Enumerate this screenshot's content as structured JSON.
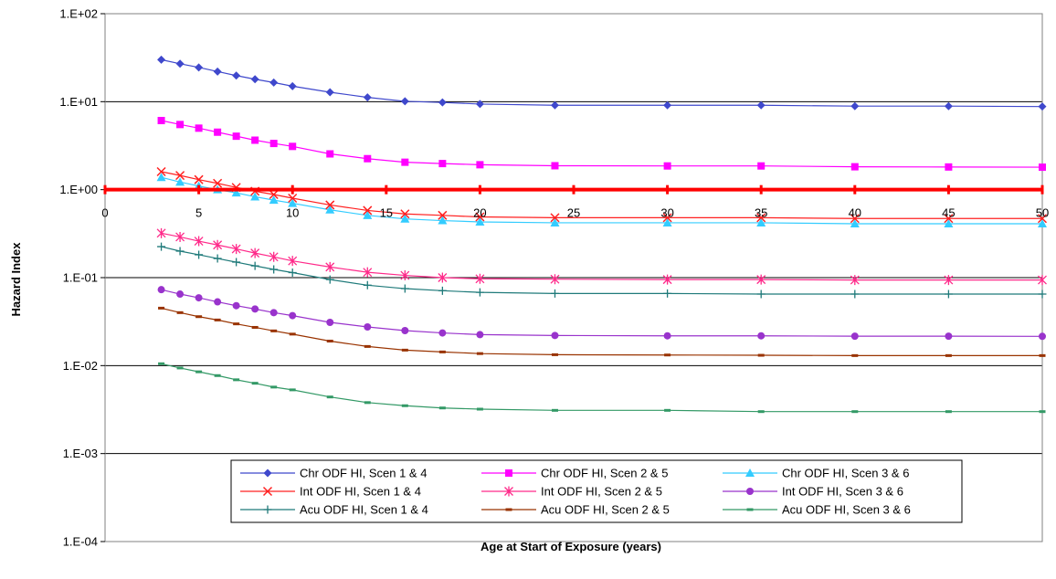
{
  "chart_data": {
    "type": "line",
    "title": "",
    "xlabel": "Age at Start of Exposure (years)",
    "ylabel": "Hazard Index",
    "y_scale": "log",
    "ylim": [
      0.0001,
      100
    ],
    "y_ticks": [
      {
        "value": 100,
        "label": "1.E+02"
      },
      {
        "value": 10,
        "label": "1.E+01"
      },
      {
        "value": 1,
        "label": "1.E+00"
      },
      {
        "value": 0.1,
        "label": "1.E-01"
      },
      {
        "value": 0.01,
        "label": "1.E-02"
      },
      {
        "value": 0.001,
        "label": "1.E-03"
      },
      {
        "value": 0.0001,
        "label": "1.E-04"
      }
    ],
    "xlim": [
      0,
      50
    ],
    "x_ticks": [
      0,
      5,
      10,
      15,
      20,
      25,
      30,
      35,
      40,
      45,
      50
    ],
    "x_axis_crosses_y_at": 1,
    "grid": "horizontal major",
    "legend_position": "bottom-center",
    "reference_line": {
      "y": 1,
      "color": "#ff0000"
    },
    "x": [
      3,
      4,
      5,
      6,
      7,
      8,
      9,
      10,
      12,
      14,
      16,
      18,
      20,
      24,
      30,
      35,
      40,
      45,
      50
    ],
    "series": [
      {
        "name": "Chr ODF HI, Scen 1 & 4",
        "color": "#3f48cc",
        "marker": "diamond",
        "values": [
          30,
          27,
          24.5,
          22,
          19.8,
          18,
          16.5,
          15,
          12.8,
          11.2,
          10.1,
          9.8,
          9.4,
          9.1,
          9.1,
          9.1,
          8.9,
          8.9,
          8.8
        ]
      },
      {
        "name": "Chr ODF HI, Scen 2 & 5",
        "color": "#ff00ff",
        "marker": "square",
        "values": [
          6.1,
          5.5,
          5.0,
          4.5,
          4.05,
          3.65,
          3.35,
          3.1,
          2.55,
          2.25,
          2.05,
          1.98,
          1.92,
          1.87,
          1.86,
          1.86,
          1.82,
          1.81,
          1.8
        ]
      },
      {
        "name": "Chr ODF HI, Scen 3 & 6",
        "color": "#33ccff",
        "marker": "triangle",
        "values": [
          1.38,
          1.22,
          1.1,
          1.0,
          0.92,
          0.83,
          0.76,
          0.7,
          0.59,
          0.51,
          0.465,
          0.445,
          0.43,
          0.42,
          0.42,
          0.42,
          0.41,
          0.41,
          0.41
        ]
      },
      {
        "name": "Int ODF HI, Scen 1 & 4",
        "color": "#ff2020",
        "marker": "x",
        "values": [
          1.6,
          1.45,
          1.3,
          1.18,
          1.06,
          0.96,
          0.88,
          0.8,
          0.67,
          0.58,
          0.53,
          0.51,
          0.49,
          0.48,
          0.48,
          0.48,
          0.47,
          0.47,
          0.47
        ]
      },
      {
        "name": "Int ODF HI, Scen 2 & 5",
        "color": "#ff2a8a",
        "marker": "star",
        "values": [
          0.32,
          0.29,
          0.26,
          0.235,
          0.212,
          0.19,
          0.172,
          0.155,
          0.132,
          0.115,
          0.106,
          0.1,
          0.097,
          0.096,
          0.095,
          0.095,
          0.094,
          0.094,
          0.094
        ]
      },
      {
        "name": "Int ODF HI, Scen 3 & 6",
        "color": "#9933cc",
        "marker": "circle",
        "values": [
          0.073,
          0.065,
          0.059,
          0.053,
          0.048,
          0.044,
          0.04,
          0.037,
          0.031,
          0.0275,
          0.025,
          0.0235,
          0.0225,
          0.022,
          0.0218,
          0.0218,
          0.0216,
          0.0216,
          0.0215
        ]
      },
      {
        "name": "Acu ODF HI, Scen 1 & 4",
        "color": "#1f7a7a",
        "marker": "plus",
        "values": [
          0.225,
          0.2,
          0.182,
          0.165,
          0.15,
          0.136,
          0.124,
          0.114,
          0.095,
          0.082,
          0.075,
          0.071,
          0.068,
          0.066,
          0.066,
          0.065,
          0.065,
          0.065,
          0.065
        ]
      },
      {
        "name": "Acu ODF HI, Scen 2 & 5",
        "color": "#993300",
        "marker": "dash",
        "values": [
          0.045,
          0.04,
          0.036,
          0.033,
          0.0298,
          0.0272,
          0.0248,
          0.0228,
          0.019,
          0.0165,
          0.015,
          0.0143,
          0.0137,
          0.0133,
          0.0132,
          0.0131,
          0.013,
          0.013,
          0.013
        ]
      },
      {
        "name": "Acu ODF HI, Scen 3 & 6",
        "color": "#339966",
        "marker": "dash",
        "values": [
          0.0105,
          0.0094,
          0.0085,
          0.0077,
          0.0069,
          0.0063,
          0.0057,
          0.0053,
          0.0044,
          0.0038,
          0.0035,
          0.0033,
          0.0032,
          0.0031,
          0.0031,
          0.003,
          0.003,
          0.003,
          0.003
        ]
      }
    ]
  }
}
